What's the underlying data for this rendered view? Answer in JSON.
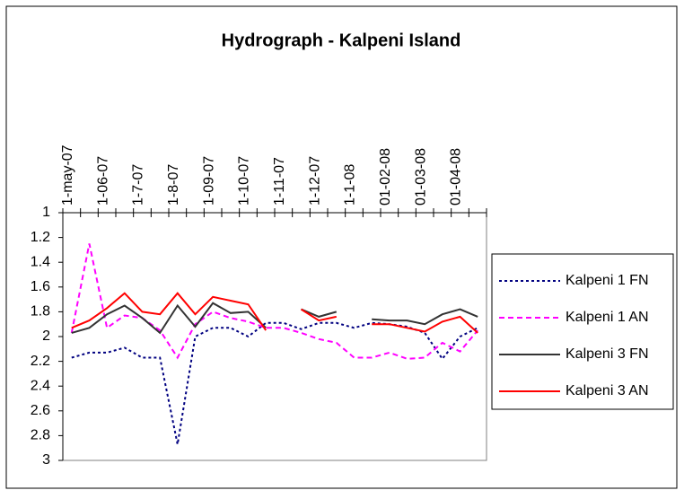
{
  "chart_data": {
    "type": "line",
    "title": "Hydrograph - Kalpeni Island",
    "categories": [
      "1-may-07",
      null,
      "1-06-07",
      null,
      "1-7-07",
      null,
      "1-8-07",
      null,
      "1-09-07",
      null,
      "1-10-07",
      null,
      "1-11-07",
      null,
      "1-12-07",
      null,
      "1-1-08",
      null,
      "01-02-08",
      null,
      "01-03-08",
      null,
      "01-04-08",
      null
    ],
    "ylim": [
      1,
      3
    ],
    "yticks": [
      1,
      1.2,
      1.4,
      1.6,
      1.8,
      2,
      2.2,
      2.4,
      2.6,
      2.8,
      3
    ],
    "y_reversed": true,
    "grid": false,
    "legend": "right",
    "series": [
      {
        "name": "Kalpeni 1 FN",
        "color": "#000080",
        "dash": "dotted",
        "values": [
          2.17,
          2.13,
          2.13,
          2.09,
          2.17,
          2.17,
          2.87,
          2.0,
          1.93,
          1.93,
          2.0,
          1.89,
          1.89,
          1.94,
          1.89,
          1.89,
          1.93,
          1.89,
          1.9,
          1.92,
          1.97,
          2.18,
          2.0,
          1.93
        ]
      },
      {
        "name": "Kalpeni 1 AN",
        "color": "#ff00ff",
        "dash": "dashed",
        "values": [
          1.97,
          1.25,
          1.93,
          1.83,
          1.85,
          1.95,
          2.17,
          1.9,
          1.8,
          1.85,
          1.88,
          1.93,
          1.93,
          1.97,
          2.02,
          2.05,
          2.17,
          2.17,
          2.13,
          2.18,
          2.17,
          2.05,
          2.12,
          1.95
        ]
      },
      {
        "name": "Kalpeni 3 FN",
        "color": "#333333",
        "dash": "solid",
        "values": [
          1.97,
          1.93,
          1.82,
          1.75,
          1.85,
          1.97,
          1.75,
          1.92,
          1.73,
          1.81,
          1.8,
          1.93,
          null,
          1.78,
          1.84,
          1.8,
          null,
          1.86,
          1.87,
          1.87,
          1.9,
          1.82,
          1.78,
          1.84
        ]
      },
      {
        "name": "Kalpeni 3 AN",
        "color": "#ff0000",
        "dash": "solid",
        "values": [
          1.93,
          1.87,
          1.77,
          1.65,
          1.8,
          1.82,
          1.65,
          1.82,
          1.68,
          1.71,
          1.74,
          1.95,
          null,
          1.78,
          1.87,
          1.84,
          null,
          1.9,
          1.9,
          1.93,
          1.96,
          1.88,
          1.84,
          1.97
        ]
      }
    ]
  }
}
